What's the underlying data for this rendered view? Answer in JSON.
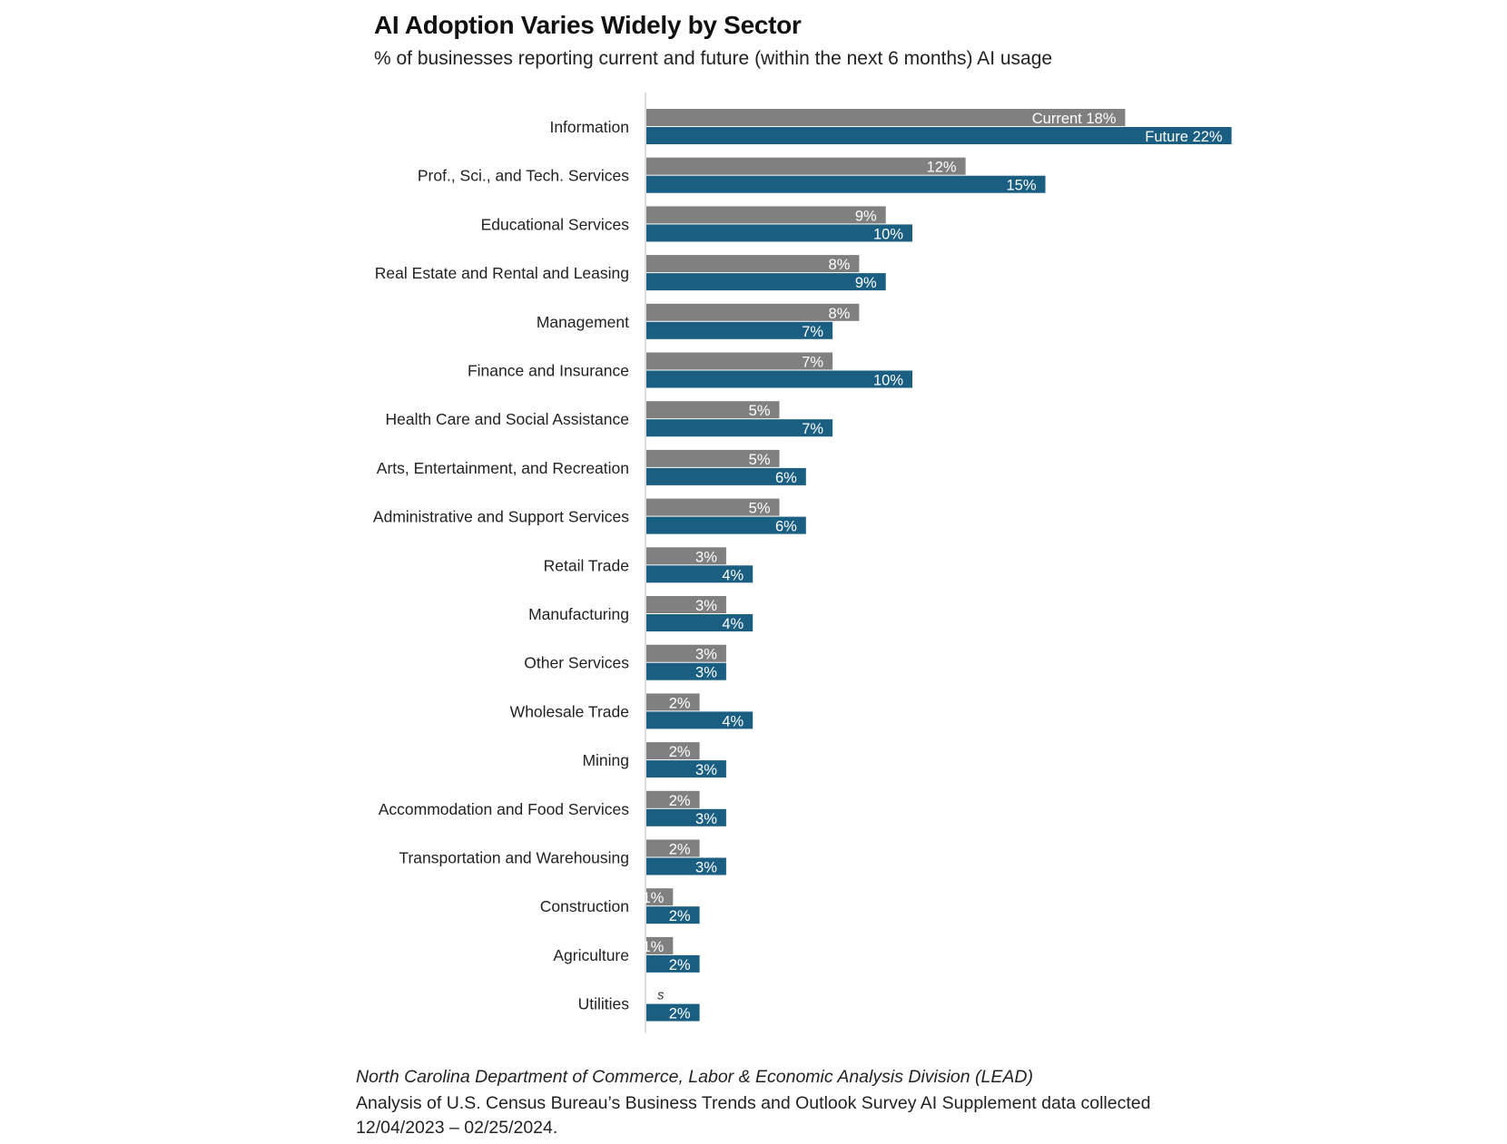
{
  "chart_data": {
    "type": "bar",
    "orientation": "horizontal",
    "title": "AI Adoption Varies Widely by Sector",
    "subtitle": "% of businesses reporting current and future (within the next 6 months) AI usage",
    "categories": [
      "Information",
      "Prof., Sci., and Tech. Services",
      "Educational Services",
      "Real Estate and Rental and Leasing",
      "Management",
      "Finance and Insurance",
      "Health Care and Social Assistance",
      "Arts, Entertainment, and Recreation",
      "Administrative and Support Services",
      "Retail Trade",
      "Manufacturing",
      "Other Services",
      "Wholesale Trade",
      "Mining",
      "Accommodation and Food Services",
      "Transportation and Warehousing",
      "Construction",
      "Agriculture",
      "Utilities"
    ],
    "series": [
      {
        "name": "Current",
        "color": "#808080",
        "values": [
          18,
          12,
          9,
          8,
          8,
          7,
          5,
          5,
          5,
          3,
          3,
          3,
          2,
          2,
          2,
          2,
          1,
          1,
          null
        ],
        "labels": [
          "Current 18%",
          "12%",
          "9%",
          "8%",
          "8%",
          "7%",
          "5%",
          "5%",
          "5%",
          "3%",
          "3%",
          "3%",
          "2%",
          "2%",
          "2%",
          "2%",
          "1%",
          "1%",
          "s"
        ]
      },
      {
        "name": "Future",
        "color": "#1a5f82",
        "values": [
          22,
          15,
          10,
          9,
          7,
          10,
          7,
          6,
          6,
          4,
          4,
          3,
          4,
          3,
          3,
          3,
          2,
          2,
          2
        ],
        "labels": [
          "Future 22%",
          "15%",
          "10%",
          "9%",
          "7%",
          "10%",
          "7%",
          "6%",
          "6%",
          "4%",
          "4%",
          "3%",
          "4%",
          "3%",
          "3%",
          "3%",
          "2%",
          "2%",
          "2%"
        ]
      }
    ],
    "xlim": [
      0,
      22
    ],
    "grid": false,
    "legend": "none (series names in data labels)"
  },
  "source": {
    "line1": "North Carolina Department of Commerce, Labor & Economic Analysis Division (LEAD)",
    "line2": "Analysis of U.S. Census Bureau’s Business Trends and Outlook Survey AI Supplement data collected",
    "line3": "12/04/2023 – 02/25/2024."
  }
}
